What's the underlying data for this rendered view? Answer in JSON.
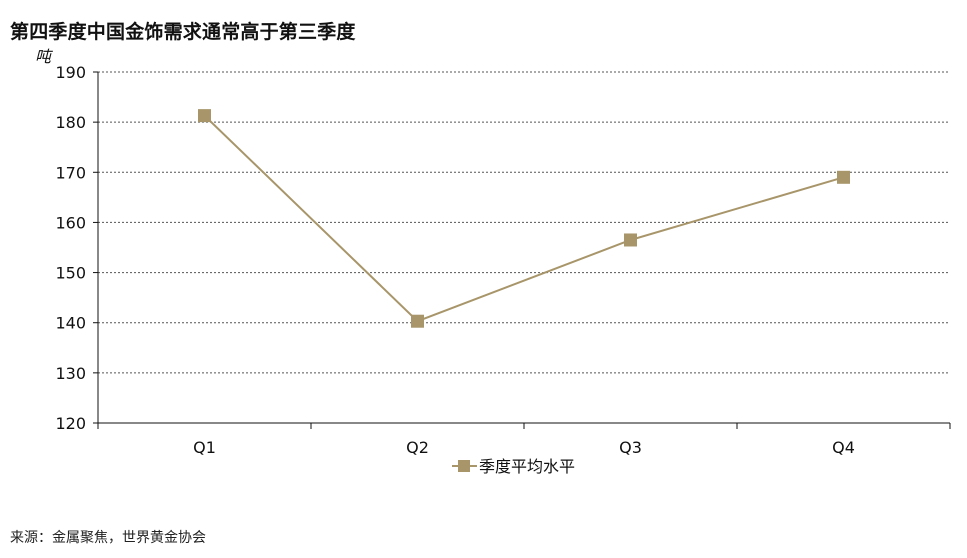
{
  "title": "第四季度中国金饰需求通常高于第三季度",
  "unit": "吨",
  "source": "来源：金属聚焦，世界黄金协会",
  "chart_data": {
    "type": "line",
    "categories": [
      "Q1",
      "Q2",
      "Q3",
      "Q4"
    ],
    "series": [
      {
        "name": "季度平均水平",
        "values": [
          181.3,
          140.3,
          156.5,
          169.0
        ],
        "color": "#a8966a",
        "marker": "square"
      }
    ],
    "ylim": [
      120,
      190
    ],
    "yticks": [
      120,
      130,
      140,
      150,
      160,
      170,
      180,
      190
    ],
    "ylabel": "吨",
    "xlabel": "",
    "grid": "dotted-horizontal",
    "legend": "bottom-center",
    "axis_color": "#111111",
    "grid_color": "#555555"
  }
}
